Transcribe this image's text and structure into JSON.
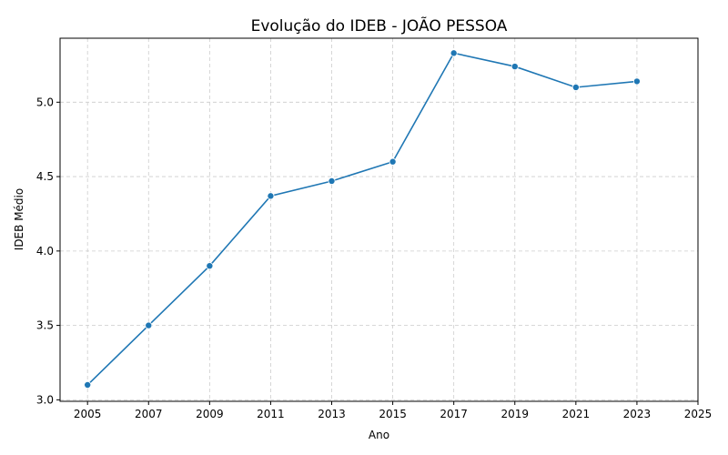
{
  "chart_data": {
    "type": "line",
    "title": "Evolução do IDEB - JOÃO PESSOA",
    "xlabel": "Ano",
    "ylabel": "IDEB Médio",
    "x": [
      2005,
      2007,
      2009,
      2011,
      2013,
      2015,
      2017,
      2019,
      2021,
      2023
    ],
    "series": [
      {
        "name": "",
        "color": "#1f77b4",
        "values": [
          3.1,
          3.5,
          3.9,
          4.37,
          4.47,
          4.6,
          5.33,
          5.24,
          5.1,
          5.14
        ]
      }
    ],
    "xlim": [
      2004.1,
      2025
    ],
    "ylim": [
      2.99,
      5.43
    ],
    "xticks": [
      "2005",
      "2007",
      "2009",
      "2011",
      "2013",
      "2015",
      "2017",
      "2019",
      "2021",
      "2023",
      "2025"
    ],
    "yticks": [
      "3.0",
      "3.5",
      "4.0",
      "4.5",
      "5.0"
    ],
    "grid": true,
    "marker": "circle"
  }
}
